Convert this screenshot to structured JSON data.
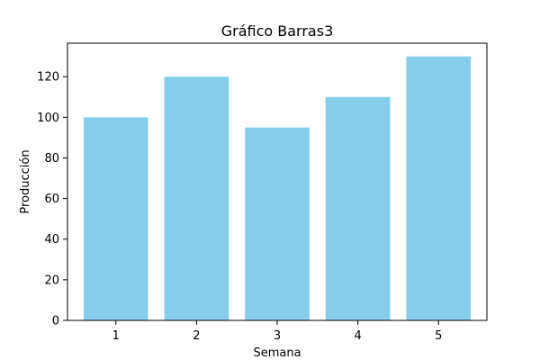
{
  "chart_data": {
    "type": "bar",
    "title": "Gráfico Barras3",
    "xlabel": "Semana",
    "ylabel": "Producción",
    "categories": [
      "1",
      "2",
      "3",
      "4",
      "5"
    ],
    "values": [
      100,
      120,
      95,
      110,
      130
    ],
    "ylim": [
      0,
      136.5
    ],
    "yticks": [
      0,
      20,
      40,
      60,
      80,
      100,
      120
    ],
    "bar_color": "#87CEEB",
    "grid": false,
    "legend": "none"
  }
}
